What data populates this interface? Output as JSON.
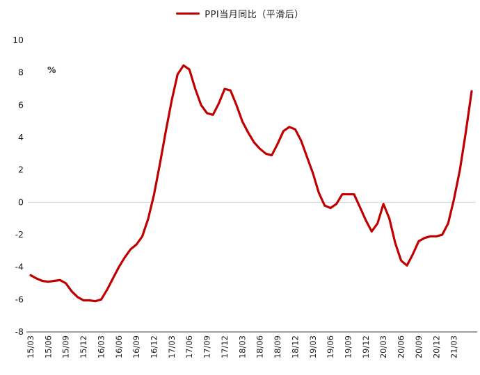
{
  "chart_data": {
    "type": "line",
    "title": "",
    "legend_position": "top",
    "y_unit_label": "%",
    "ylim": [
      -8,
      10
    ],
    "y_ticks": [
      10,
      8,
      6,
      4,
      2,
      0,
      -2,
      -4,
      -6,
      -8
    ],
    "x_tick_labels": [
      "15/03",
      "15/06",
      "15/09",
      "15/12",
      "16/03",
      "16/06",
      "16/09",
      "16/12",
      "17/03",
      "17/06",
      "17/09",
      "17/12",
      "18/03",
      "18/06",
      "18/09",
      "18/12",
      "19/03",
      "19/06",
      "19/09",
      "19/12",
      "20/03",
      "20/06",
      "20/09",
      "20/12",
      "21/03"
    ],
    "x_tick_every": 3,
    "grid": "zero-line-only",
    "series": [
      {
        "name": "PPI当月同比（平滑后）",
        "color": "#c00000",
        "values": [
          -4.5,
          -4.7,
          -4.85,
          -4.9,
          -4.85,
          -4.8,
          -5.0,
          -5.5,
          -5.85,
          -6.05,
          -6.05,
          -6.1,
          -6.0,
          -5.4,
          -4.7,
          -4.0,
          -3.4,
          -2.9,
          -2.6,
          -2.1,
          -1.0,
          0.5,
          2.4,
          4.4,
          6.3,
          7.9,
          8.45,
          8.2,
          7.0,
          6.0,
          5.5,
          5.4,
          6.1,
          7.0,
          6.9,
          6.0,
          5.0,
          4.3,
          3.7,
          3.3,
          3.0,
          2.9,
          3.6,
          4.4,
          4.65,
          4.5,
          3.8,
          2.8,
          1.8,
          0.6,
          -0.2,
          -0.35,
          -0.1,
          0.5,
          0.5,
          0.5,
          -0.3,
          -1.1,
          -1.8,
          -1.3,
          -0.1,
          -1.0,
          -2.5,
          -3.6,
          -3.9,
          -3.2,
          -2.4,
          -2.2,
          -2.1,
          -2.1,
          -2.0,
          -1.3,
          0.2,
          2.0,
          4.3,
          6.85
        ]
      }
    ],
    "colors": {
      "series_line": "#c00000",
      "zero_gridline": "#d9d9d9",
      "axis_line": "#404040",
      "tick_text": "#1a1a1a"
    }
  },
  "legend": {
    "label": "PPI当月同比（平滑后）"
  }
}
